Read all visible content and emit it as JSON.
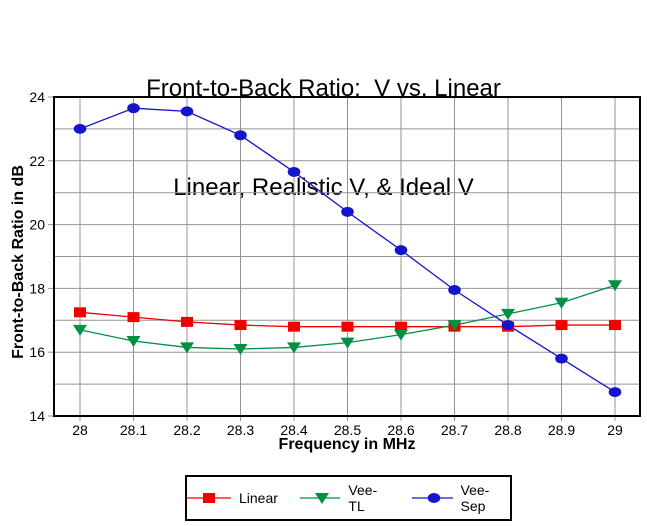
{
  "title": {
    "line1": "Front-to-Back Ratio:  V vs. Linear",
    "line2": "Linear, Realistic V, & Ideal V"
  },
  "chart_data": {
    "type": "line",
    "x": [
      28,
      28.1,
      28.2,
      28.3,
      28.4,
      28.5,
      28.6,
      28.7,
      28.8,
      28.9,
      29
    ],
    "series": [
      {
        "name": "Linear",
        "marker": "square",
        "color": "#f20000",
        "values": [
          17.25,
          17.1,
          16.95,
          16.85,
          16.8,
          16.8,
          16.8,
          16.8,
          16.8,
          16.85,
          16.85
        ]
      },
      {
        "name": "Vee-TL",
        "marker": "triangle-down",
        "color": "#008f43",
        "values": [
          16.7,
          16.35,
          16.15,
          16.1,
          16.15,
          16.3,
          16.55,
          16.85,
          17.2,
          17.55,
          18.1
        ]
      },
      {
        "name": "Vee-Sep",
        "marker": "circle",
        "color": "#1414cf",
        "values": [
          23.0,
          23.65,
          23.55,
          22.8,
          21.65,
          20.4,
          19.2,
          17.95,
          16.85,
          15.8,
          14.75
        ]
      }
    ],
    "xlabel": "Frequency in MHz",
    "ylabel": "Front-to-Back Ratio in dB",
    "xlim": [
      28,
      29
    ],
    "ylim": [
      14,
      24
    ],
    "y_tick_labels": [
      14,
      16,
      18,
      20,
      22,
      24
    ],
    "y_gridlines": [
      15,
      16,
      17,
      18,
      19,
      20,
      21,
      22,
      23
    ],
    "grid_color": "#949494",
    "axis_color": "#000000",
    "legend_position": "bottom"
  }
}
